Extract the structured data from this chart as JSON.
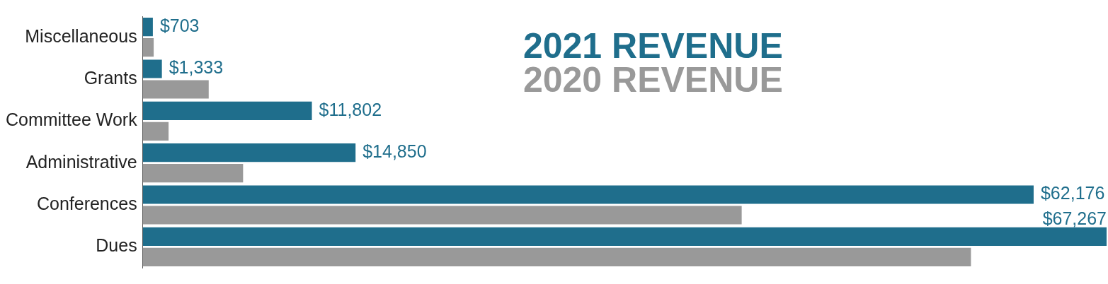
{
  "chart_data": {
    "type": "bar",
    "orientation": "horizontal",
    "categories": [
      "Miscellaneous",
      "Grants",
      "Committee Work",
      "Administrative",
      "Conferences",
      "Dues"
    ],
    "xlim": [
      0,
      67267
    ],
    "legend": "top",
    "grid": false,
    "series": [
      {
        "name": "2021 REVENUE",
        "color": "#1f6e8c",
        "values": [
          703,
          1333,
          11802,
          14850,
          62176,
          67267
        ],
        "value_labels": [
          "$703",
          "$1,333",
          "$11,802",
          "$14,850",
          "$62,176",
          "$67,267"
        ]
      },
      {
        "name": "2020 REVENUE",
        "color": "#999999",
        "values": [
          760,
          4600,
          1800,
          7000,
          41800,
          57800
        ]
      }
    ]
  }
}
